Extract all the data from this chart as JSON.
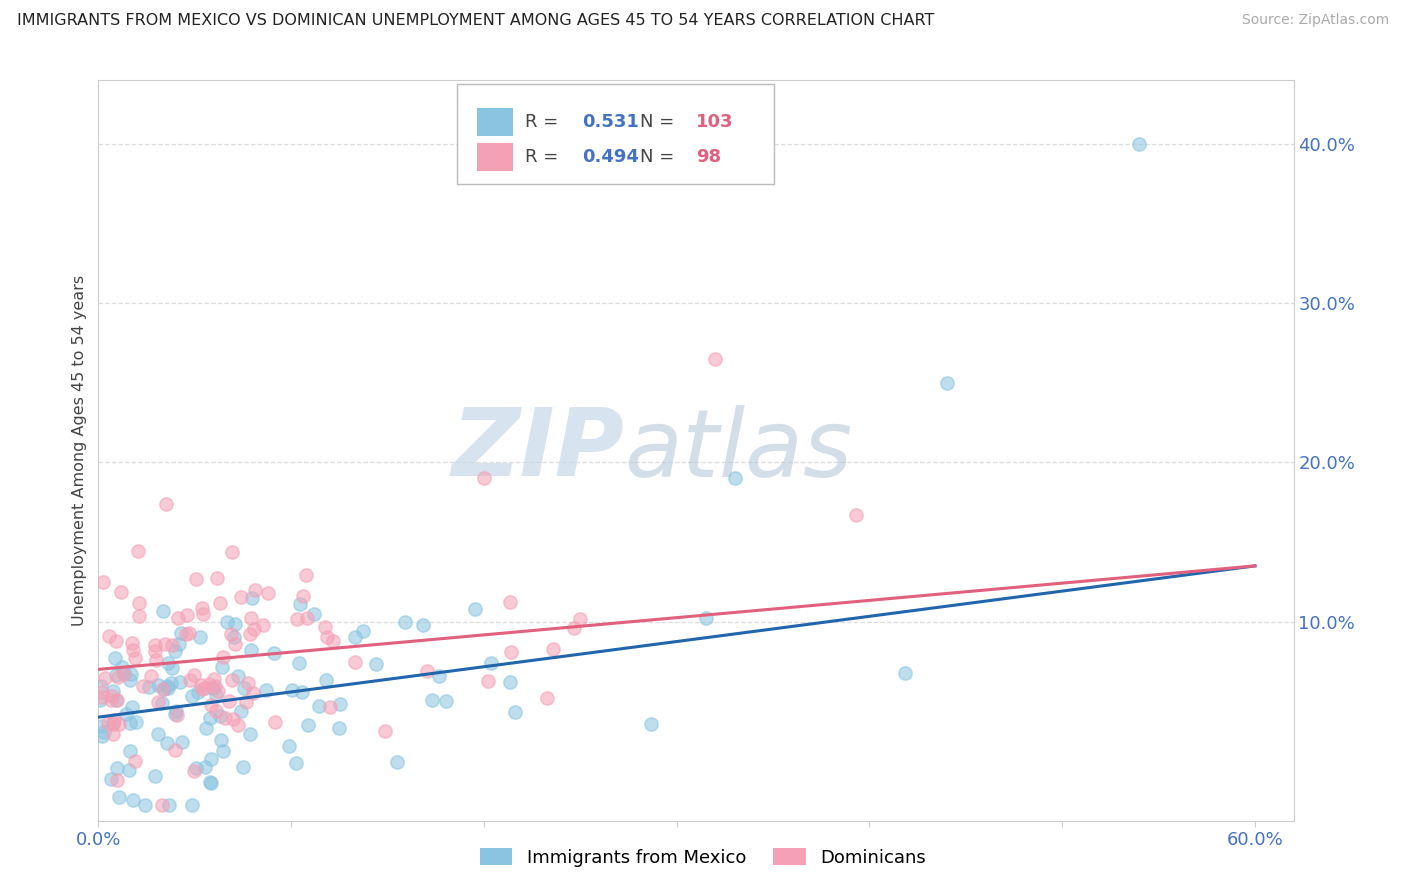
{
  "title": "IMMIGRANTS FROM MEXICO VS DOMINICAN UNEMPLOYMENT AMONG AGES 45 TO 54 YEARS CORRELATION CHART",
  "source": "Source: ZipAtlas.com",
  "ylabel": "Unemployment Among Ages 45 to 54 years",
  "xlim": [
    0.0,
    0.62
  ],
  "ylim": [
    -0.025,
    0.44
  ],
  "yticks": [
    0.1,
    0.2,
    0.3,
    0.4
  ],
  "ytick_labels": [
    "10.0%",
    "20.0%",
    "30.0%",
    "40.0%"
  ],
  "xticks": [
    0.0,
    0.1,
    0.2,
    0.3,
    0.4,
    0.5,
    0.6
  ],
  "xtick_labels_show": [
    "0.0%",
    "60.0%"
  ],
  "color_mexico": "#89c4e1",
  "color_dominican": "#f4a0b5",
  "line_color_mexico": "#2166ac",
  "line_color_dominican": "#e0607e",
  "R_mexico": 0.531,
  "N_mexico": 103,
  "R_dominican": 0.494,
  "N_dominican": 98,
  "legend_label_mexico": "Immigrants from Mexico",
  "legend_label_dominican": "Dominicans",
  "watermark_zip": "ZIP",
  "watermark_atlas": "atlas",
  "grid_color": "#dddddd",
  "tick_color": "#4472c4",
  "title_color": "#222222",
  "source_color": "#aaaaaa",
  "ylabel_color": "#444444",
  "line_mex_start_y": 0.04,
  "line_mex_end_y": 0.135,
  "line_dom_start_y": 0.07,
  "line_dom_end_y": 0.135
}
